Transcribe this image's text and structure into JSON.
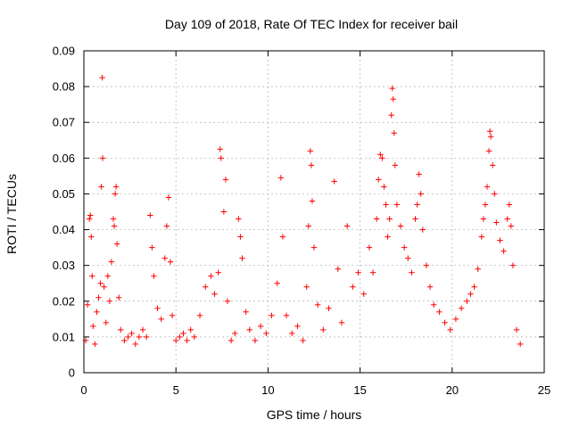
{
  "chart_data": {
    "type": "scatter",
    "title": "Day 109 of 2018, Rate Of TEC Index for receiver bail",
    "xlabel": "GPS time / hours",
    "ylabel": "ROTI / TECUs",
    "xlim": [
      0,
      25
    ],
    "ylim": [
      0,
      0.09
    ],
    "xticks": [
      0,
      5,
      10,
      15,
      20,
      25
    ],
    "xtick_labels": [
      "0",
      "5",
      "10",
      "15",
      "20",
      "25"
    ],
    "yticks": [
      0,
      0.01,
      0.02,
      0.03,
      0.04,
      0.05,
      0.06,
      0.07,
      0.08,
      0.09
    ],
    "ytick_labels": [
      "0",
      "0.01",
      "0.02",
      "0.03",
      "0.04",
      "0.05",
      "0.06",
      "0.07",
      "0.08",
      "0.09"
    ],
    "grid": true,
    "marker": "+",
    "color": "#ff0000",
    "series": [
      {
        "name": "ROTI",
        "points": [
          [
            0.1,
            0.009
          ],
          [
            0.2,
            0.019
          ],
          [
            0.3,
            0.043
          ],
          [
            0.35,
            0.044
          ],
          [
            0.4,
            0.038
          ],
          [
            0.45,
            0.027
          ],
          [
            0.5,
            0.013
          ],
          [
            0.6,
            0.008
          ],
          [
            0.7,
            0.017
          ],
          [
            0.8,
            0.021
          ],
          [
            0.9,
            0.025
          ],
          [
            0.95,
            0.052
          ],
          [
            1.0,
            0.0825
          ],
          [
            1.02,
            0.06
          ],
          [
            1.1,
            0.024
          ],
          [
            1.2,
            0.014
          ],
          [
            1.3,
            0.027
          ],
          [
            1.4,
            0.02
          ],
          [
            1.5,
            0.031
          ],
          [
            1.6,
            0.043
          ],
          [
            1.65,
            0.041
          ],
          [
            1.7,
            0.05
          ],
          [
            1.75,
            0.052
          ],
          [
            1.8,
            0.036
          ],
          [
            1.9,
            0.021
          ],
          [
            2.0,
            0.012
          ],
          [
            2.2,
            0.009
          ],
          [
            2.4,
            0.01
          ],
          [
            2.6,
            0.011
          ],
          [
            2.8,
            0.008
          ],
          [
            3.0,
            0.01
          ],
          [
            3.2,
            0.012
          ],
          [
            3.4,
            0.01
          ],
          [
            3.6,
            0.044
          ],
          [
            3.7,
            0.035
          ],
          [
            3.8,
            0.027
          ],
          [
            4.0,
            0.018
          ],
          [
            4.2,
            0.015
          ],
          [
            4.4,
            0.032
          ],
          [
            4.5,
            0.041
          ],
          [
            4.6,
            0.049
          ],
          [
            4.7,
            0.031
          ],
          [
            4.8,
            0.016
          ],
          [
            5.0,
            0.009
          ],
          [
            5.2,
            0.01
          ],
          [
            5.4,
            0.011
          ],
          [
            5.6,
            0.009
          ],
          [
            5.8,
            0.012
          ],
          [
            6.0,
            0.01
          ],
          [
            6.3,
            0.016
          ],
          [
            6.6,
            0.024
          ],
          [
            6.9,
            0.027
          ],
          [
            7.1,
            0.022
          ],
          [
            7.3,
            0.028
          ],
          [
            7.4,
            0.0625
          ],
          [
            7.45,
            0.06
          ],
          [
            7.6,
            0.045
          ],
          [
            7.7,
            0.054
          ],
          [
            7.8,
            0.02
          ],
          [
            8.0,
            0.009
          ],
          [
            8.2,
            0.011
          ],
          [
            8.4,
            0.043
          ],
          [
            8.5,
            0.038
          ],
          [
            8.6,
            0.032
          ],
          [
            8.8,
            0.017
          ],
          [
            9.0,
            0.012
          ],
          [
            9.3,
            0.009
          ],
          [
            9.6,
            0.013
          ],
          [
            9.9,
            0.011
          ],
          [
            10.2,
            0.016
          ],
          [
            10.5,
            0.025
          ],
          [
            10.7,
            0.0545
          ],
          [
            10.8,
            0.038
          ],
          [
            11.0,
            0.016
          ],
          [
            11.3,
            0.011
          ],
          [
            11.6,
            0.013
          ],
          [
            11.9,
            0.009
          ],
          [
            12.1,
            0.024
          ],
          [
            12.2,
            0.041
          ],
          [
            12.3,
            0.062
          ],
          [
            12.35,
            0.058
          ],
          [
            12.4,
            0.048
          ],
          [
            12.5,
            0.035
          ],
          [
            12.7,
            0.019
          ],
          [
            13.0,
            0.012
          ],
          [
            13.3,
            0.018
          ],
          [
            13.6,
            0.0535
          ],
          [
            13.8,
            0.029
          ],
          [
            14.0,
            0.014
          ],
          [
            14.3,
            0.041
          ],
          [
            14.6,
            0.024
          ],
          [
            14.9,
            0.028
          ],
          [
            15.2,
            0.022
          ],
          [
            15.5,
            0.035
          ],
          [
            15.7,
            0.028
          ],
          [
            15.9,
            0.043
          ],
          [
            16.0,
            0.054
          ],
          [
            16.1,
            0.061
          ],
          [
            16.2,
            0.06
          ],
          [
            16.3,
            0.052
          ],
          [
            16.4,
            0.047
          ],
          [
            16.5,
            0.038
          ],
          [
            16.6,
            0.043
          ],
          [
            16.7,
            0.072
          ],
          [
            16.75,
            0.0795
          ],
          [
            16.8,
            0.0765
          ],
          [
            16.85,
            0.067
          ],
          [
            16.9,
            0.058
          ],
          [
            17.0,
            0.047
          ],
          [
            17.2,
            0.041
          ],
          [
            17.4,
            0.035
          ],
          [
            17.6,
            0.032
          ],
          [
            17.8,
            0.028
          ],
          [
            18.0,
            0.043
          ],
          [
            18.1,
            0.047
          ],
          [
            18.2,
            0.0555
          ],
          [
            18.3,
            0.05
          ],
          [
            18.4,
            0.04
          ],
          [
            18.6,
            0.03
          ],
          [
            18.8,
            0.024
          ],
          [
            19.0,
            0.019
          ],
          [
            19.3,
            0.017
          ],
          [
            19.6,
            0.014
          ],
          [
            19.9,
            0.012
          ],
          [
            20.2,
            0.015
          ],
          [
            20.5,
            0.018
          ],
          [
            20.8,
            0.02
          ],
          [
            21.0,
            0.022
          ],
          [
            21.2,
            0.024
          ],
          [
            21.4,
            0.029
          ],
          [
            21.6,
            0.038
          ],
          [
            21.7,
            0.043
          ],
          [
            21.8,
            0.047
          ],
          [
            21.9,
            0.052
          ],
          [
            22.0,
            0.062
          ],
          [
            22.05,
            0.0675
          ],
          [
            22.1,
            0.066
          ],
          [
            22.2,
            0.058
          ],
          [
            22.3,
            0.05
          ],
          [
            22.4,
            0.042
          ],
          [
            22.6,
            0.037
          ],
          [
            22.8,
            0.034
          ],
          [
            23.0,
            0.043
          ],
          [
            23.1,
            0.047
          ],
          [
            23.2,
            0.041
          ],
          [
            23.3,
            0.03
          ],
          [
            23.5,
            0.012
          ],
          [
            23.7,
            0.008
          ]
        ]
      }
    ]
  }
}
